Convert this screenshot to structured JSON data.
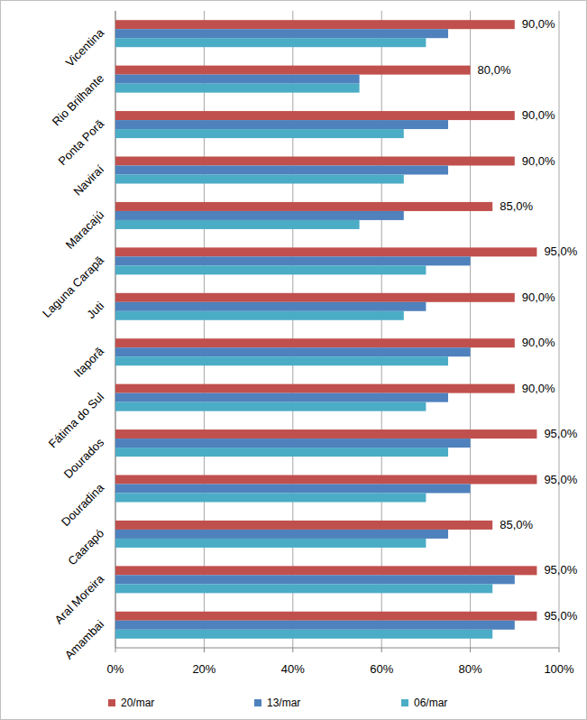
{
  "chart_data": {
    "type": "bar",
    "orientation": "horizontal",
    "grid": true,
    "legend": "bottom",
    "categories": [
      "Vicentina",
      "Rio Brilhante",
      "Ponta Porã",
      "Naviraí",
      "Maracajú",
      "Laguna Carapã",
      "Juti",
      "Itaporã",
      "Fátima do Sul",
      "Dourados",
      "Douradina",
      "Caarapó",
      "Aral Moreira",
      "Amambai"
    ],
    "series": [
      {
        "name": "20/mar",
        "color": "#c0504d",
        "data_labels": true,
        "values": [
          90,
          80,
          90,
          90,
          85,
          95,
          90,
          90,
          90,
          95,
          95,
          85,
          95,
          95
        ],
        "value_labels": [
          "90,0%",
          "80,0%",
          "90,0%",
          "90,0%",
          "85,0%",
          "95,0%",
          "90,0%",
          "90,0%",
          "90,0%",
          "95,0%",
          "95,0%",
          "85,0%",
          "95,0%",
          "95,0%"
        ]
      },
      {
        "name": "13/mar",
        "color": "#4f81bd",
        "values": [
          75,
          55,
          75,
          75,
          65,
          80,
          70,
          80,
          75,
          80,
          80,
          75,
          90,
          90
        ]
      },
      {
        "name": "06/mar",
        "color": "#4bacc6",
        "values": [
          70,
          55,
          65,
          65,
          55,
          70,
          65,
          75,
          70,
          75,
          70,
          70,
          85,
          85
        ]
      }
    ],
    "xlim": [
      0,
      100
    ],
    "xticks": [
      {
        "value": 0,
        "label": "0%"
      },
      {
        "value": 20,
        "label": "20%"
      },
      {
        "value": 40,
        "label": "40%"
      },
      {
        "value": 60,
        "label": "60%"
      },
      {
        "value": 80,
        "label": "80%"
      },
      {
        "value": 100,
        "label": "100%"
      }
    ]
  }
}
